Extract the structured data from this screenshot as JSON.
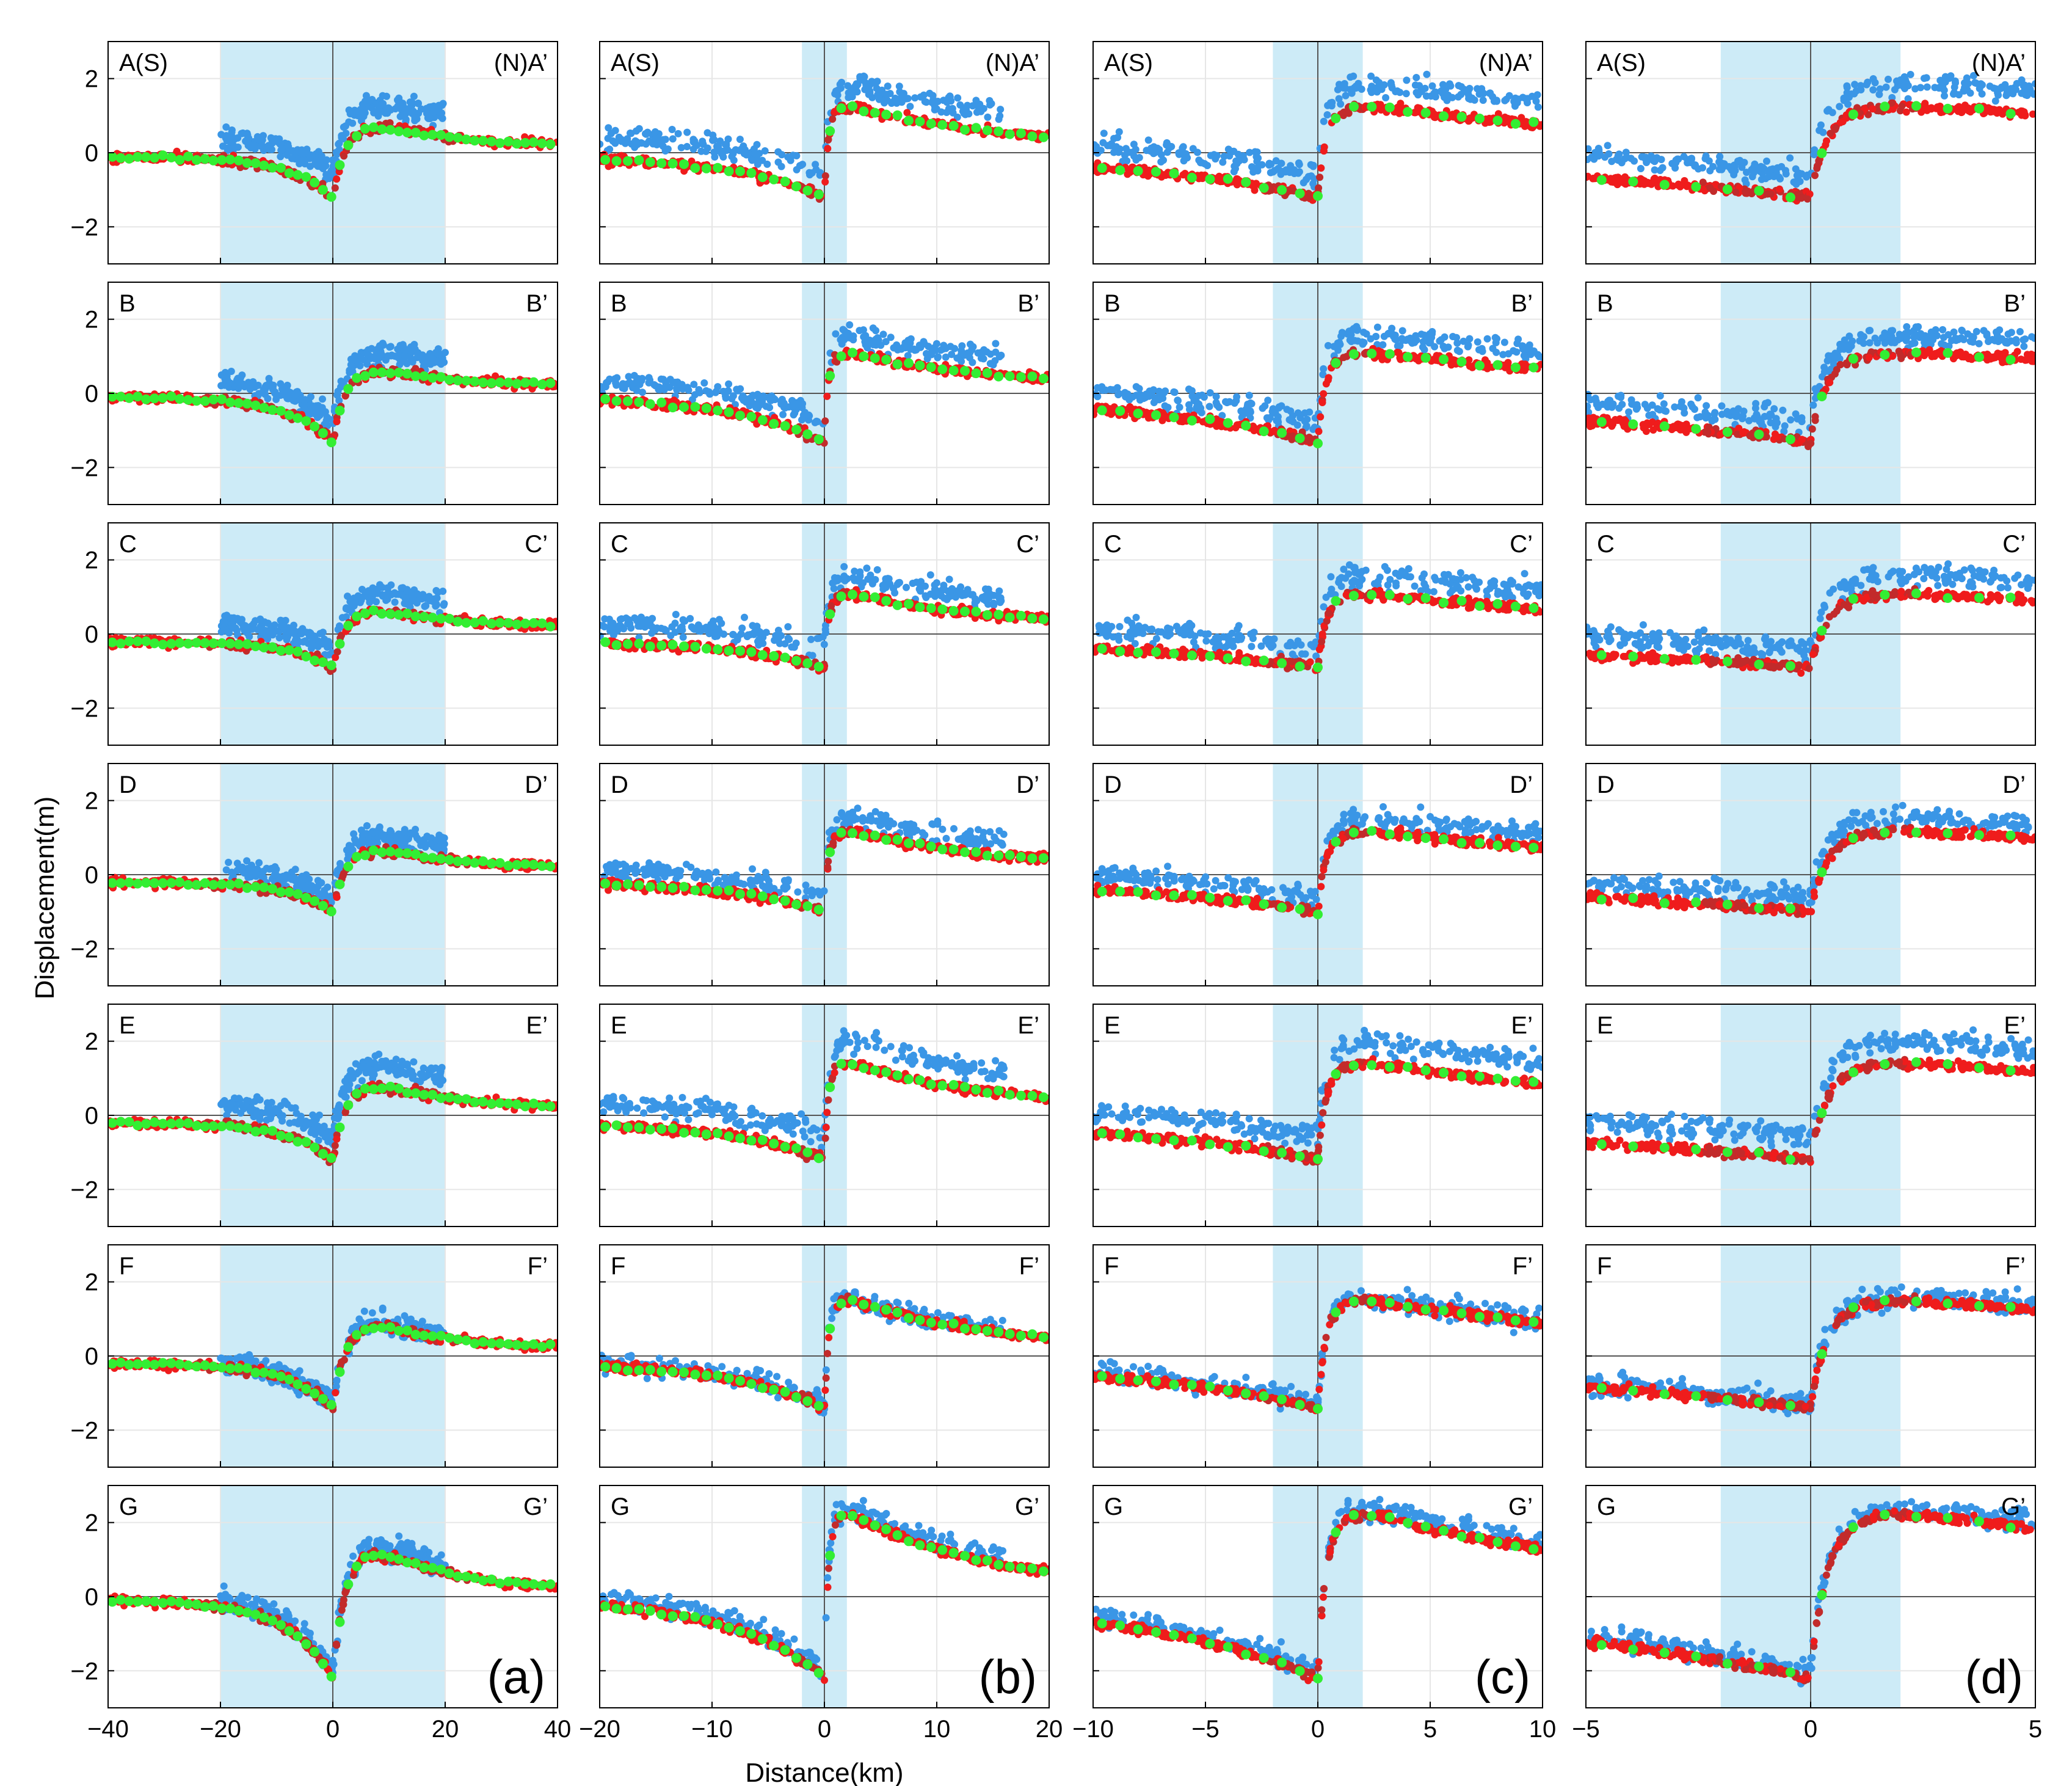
{
  "chart_data": {
    "type": "scatter",
    "ylabel": "Displacement(m)",
    "xlabel": "Distance(km)",
    "ylim": [
      -3,
      3
    ],
    "yticks": [
      -2,
      0,
      2
    ],
    "ytick_labels": [
      "−2",
      "0",
      "2"
    ],
    "colors": {
      "blue_points": "#3a96e6",
      "red_points": "#ef1c1c",
      "darkred_points": "#c22b2b",
      "green_points": "#33ee33",
      "fault_zone": "#cdebf7",
      "grid": "#e6e6e6"
    },
    "columns": [
      {
        "panel_letter": "(a)",
        "xlim": [
          -40,
          40
        ],
        "xticks": [
          -40,
          -20,
          0,
          20,
          40
        ],
        "xtick_labels": [
          "−40",
          "−20",
          "0",
          "20",
          "40"
        ],
        "highlight": [
          -20,
          20
        ],
        "blue_range": [
          -20,
          20
        ],
        "green_step": 1.5
      },
      {
        "panel_letter": "(b)",
        "xlim": [
          -20,
          20
        ],
        "xticks": [
          -20,
          -10,
          0,
          10,
          20
        ],
        "xtick_labels": [
          "−20",
          "−10",
          "0",
          "10",
          "20"
        ],
        "highlight": [
          -2,
          2
        ],
        "blue_range": [
          -20,
          16
        ],
        "green_step": 1.0
      },
      {
        "panel_letter": "(c)",
        "xlim": [
          -10,
          10
        ],
        "xticks": [
          -10,
          -5,
          0,
          5,
          10
        ],
        "xtick_labels": [
          "−10",
          "−5",
          "0",
          "5",
          "10"
        ],
        "highlight": [
          -2,
          2
        ],
        "blue_range": [
          -10,
          10
        ],
        "green_step": 0.8
      },
      {
        "panel_letter": "(d)",
        "xlim": [
          -5,
          5
        ],
        "xticks": [
          -5,
          0,
          5
        ],
        "xtick_labels": [
          "−5",
          "0",
          "5"
        ],
        "highlight": [
          -2,
          2
        ],
        "blue_range": [
          -5,
          5
        ],
        "green_step": 0.7
      }
    ],
    "profiles": [
      {
        "left_label": "A(S)",
        "right_label": "(N)A’",
        "south_offset": -1.2,
        "north_offset": 1.5,
        "west_base": -0.1,
        "east_base": 0.2,
        "blue_shift": 0.6
      },
      {
        "left_label": "B",
        "right_label": "B’",
        "south_offset": -1.3,
        "north_offset": 1.3,
        "west_base": -0.1,
        "east_base": 0.2,
        "blue_shift": 0.5
      },
      {
        "left_label": "C",
        "right_label": "C’",
        "south_offset": -0.9,
        "north_offset": 1.3,
        "west_base": -0.2,
        "east_base": 0.2,
        "blue_shift": 0.5
      },
      {
        "left_label": "D",
        "right_label": "D’",
        "south_offset": -1.0,
        "north_offset": 1.4,
        "west_base": -0.2,
        "east_base": 0.2,
        "blue_shift": 0.4
      },
      {
        "left_label": "E",
        "right_label": "E’",
        "south_offset": -1.2,
        "north_offset": 1.7,
        "west_base": -0.2,
        "east_base": 0.2,
        "blue_shift": 0.6
      },
      {
        "left_label": "F",
        "right_label": "F’",
        "south_offset": -1.4,
        "north_offset": 1.8,
        "west_base": -0.2,
        "east_base": 0.2,
        "blue_shift": 0.1
      },
      {
        "left_label": "G",
        "right_label": "G’",
        "south_offset": -2.2,
        "north_offset": 2.7,
        "west_base": -0.1,
        "east_base": 0.2,
        "blue_shift": 0.2
      }
    ],
    "series": [
      {
        "name": "blue",
        "color": "#3a96e6"
      },
      {
        "name": "red",
        "color": "#ef1c1c"
      },
      {
        "name": "darkred",
        "color": "#c22b2b"
      },
      {
        "name": "green",
        "color": "#33ee33"
      }
    ]
  }
}
